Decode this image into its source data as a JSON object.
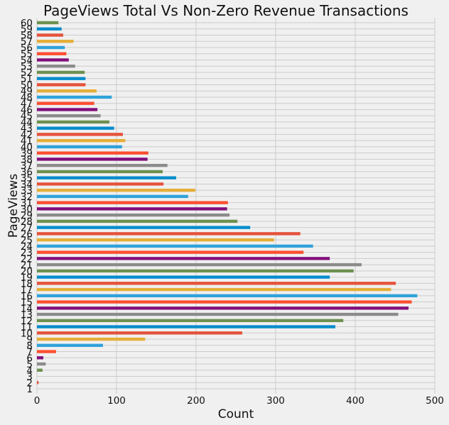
{
  "chart_data": {
    "type": "bar",
    "orientation": "horizontal",
    "title": "PageViews Total Vs Non-Zero Revenue Transactions",
    "xlabel": "Count",
    "ylabel": "PageViews",
    "xlim": [
      0,
      500
    ],
    "xticks": [
      0,
      100,
      200,
      300,
      400,
      500
    ],
    "grid": true,
    "legend": "none",
    "palette": [
      "#e5ae38",
      "#e5523b",
      "#078dcc",
      "#6d904f",
      "#8b8b8b",
      "#810f7c",
      "#fc4f30",
      "#30a2da"
    ],
    "categories": [
      "1",
      "2",
      "3",
      "4",
      "5",
      "6",
      "7",
      "8",
      "9",
      "10",
      "11",
      "12",
      "13",
      "14",
      "15",
      "16",
      "17",
      "18",
      "19",
      "20",
      "21",
      "22",
      "23",
      "24",
      "25",
      "26",
      "27",
      "28",
      "29",
      "30",
      "31",
      "32",
      "33",
      "34",
      "35",
      "36",
      "37",
      "38",
      "39",
      "40",
      "41",
      "42",
      "43",
      "44",
      "45",
      "46",
      "47",
      "48",
      "49",
      "50",
      "51",
      "52",
      "53",
      "54",
      "55",
      "56",
      "57",
      "58",
      "59",
      "60"
    ],
    "tick_labels": [
      "1",
      "2",
      "3",
      "4",
      "5",
      "6",
      "7",
      "8",
      "9",
      "10",
      "11",
      "12",
      "13",
      "14",
      "15",
      "16",
      "17",
      "18",
      "19",
      "20",
      "21",
      "22",
      "23",
      "24",
      "25",
      "26",
      "27",
      "28",
      "29",
      "30",
      "31",
      "32",
      "33",
      "34",
      "35",
      "36",
      "37",
      "38",
      "39",
      "40",
      "41",
      "42",
      "43",
      "44",
      "45",
      "46",
      "47",
      "48",
      "49",
      "50",
      "51",
      "52",
      "53",
      "54",
      "55",
      "56",
      "57",
      "58",
      "59",
      "60"
    ],
    "values": [
      0,
      2,
      0,
      7,
      11,
      8,
      24,
      83,
      136,
      258,
      375,
      385,
      454,
      467,
      471,
      478,
      445,
      451,
      368,
      398,
      408,
      368,
      335,
      347,
      298,
      331,
      268,
      252,
      242,
      239,
      240,
      190,
      199,
      159,
      175,
      158,
      164,
      139,
      140,
      107,
      111,
      108,
      97,
      91,
      80,
      76,
      72,
      94,
      75,
      61,
      61,
      60,
      48,
      40,
      37,
      35,
      46,
      33,
      31,
      27
    ]
  }
}
